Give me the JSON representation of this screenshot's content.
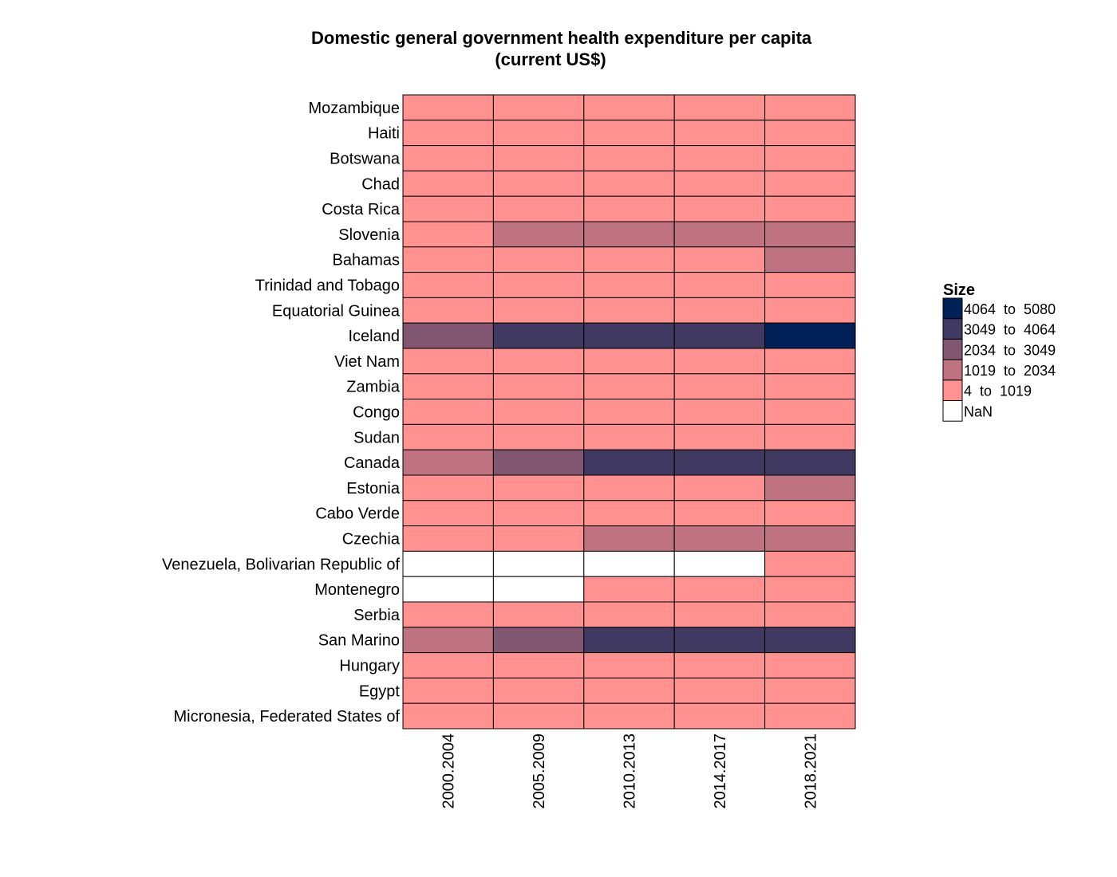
{
  "chart_data": {
    "type": "heatmap",
    "title": [
      "Domestic general government health expenditure per capita",
      "(current US$)"
    ],
    "x_categories": [
      "2000.2004",
      "2005.2009",
      "2010.2013",
      "2014.2017",
      "2018.2021"
    ],
    "y_categories": [
      "Mozambique",
      "Haiti",
      "Botswana",
      "Chad",
      "Costa Rica",
      "Slovenia",
      "Bahamas",
      "Trinidad and Tobago",
      "Equatorial Guinea",
      "Iceland",
      "Viet Nam",
      "Zambia",
      "Congo",
      "Sudan",
      "Canada",
      "Estonia",
      "Cabo Verde",
      "Czechia",
      "Venezuela, Bolivarian Republic of",
      "Montenegro",
      "Serbia",
      "San Marino",
      "Hungary",
      "Egypt",
      "Micronesia, Federated States of"
    ],
    "cells": [
      [
        0,
        0,
        0,
        0,
        0
      ],
      [
        0,
        0,
        0,
        0,
        0
      ],
      [
        0,
        0,
        0,
        0,
        0
      ],
      [
        0,
        0,
        0,
        0,
        0
      ],
      [
        0,
        0,
        0,
        0,
        0
      ],
      [
        0,
        1,
        1,
        1,
        1
      ],
      [
        0,
        0,
        0,
        0,
        1
      ],
      [
        0,
        0,
        0,
        0,
        0
      ],
      [
        0,
        0,
        0,
        0,
        0
      ],
      [
        2,
        3,
        3,
        3,
        4
      ],
      [
        0,
        0,
        0,
        0,
        0
      ],
      [
        0,
        0,
        0,
        0,
        0
      ],
      [
        0,
        0,
        0,
        0,
        0
      ],
      [
        0,
        0,
        0,
        0,
        0
      ],
      [
        1,
        2,
        3,
        3,
        3
      ],
      [
        0,
        0,
        0,
        0,
        1
      ],
      [
        0,
        0,
        0,
        0,
        0
      ],
      [
        0,
        0,
        1,
        1,
        1
      ],
      [
        null,
        null,
        null,
        null,
        0
      ],
      [
        null,
        null,
        0,
        0,
        0
      ],
      [
        0,
        0,
        0,
        0,
        0
      ],
      [
        1,
        2,
        3,
        3,
        3
      ],
      [
        0,
        0,
        0,
        0,
        0
      ],
      [
        0,
        0,
        0,
        0,
        0
      ],
      [
        0,
        0,
        0,
        0,
        0
      ]
    ],
    "bins": [
      {
        "label": "4  to  1019",
        "color": "#FF9191"
      },
      {
        "label": "1019  to  2034",
        "color": "#BF7381"
      },
      {
        "label": "2034  to  3049",
        "color": "#805670"
      },
      {
        "label": "3049  to  4064",
        "color": "#403A62"
      },
      {
        "label": "4064  to  5080",
        "color": "#002058"
      }
    ],
    "nan_bin": {
      "label": "NaN",
      "color": "#FFFFFF"
    },
    "legend": {
      "title": "Size",
      "order": [
        4,
        3,
        2,
        1,
        0,
        "nan"
      ],
      "position": "right"
    }
  }
}
